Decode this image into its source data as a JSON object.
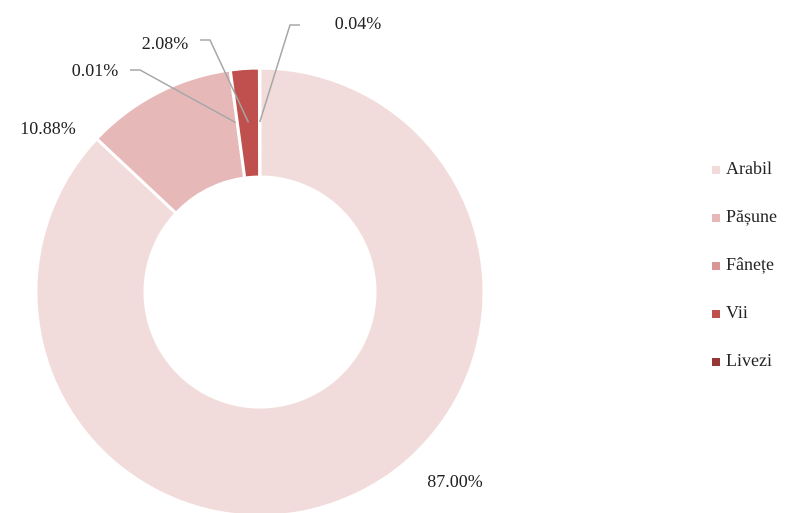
{
  "chart_data": {
    "type": "donut",
    "categories": [
      "Arabil",
      "Pășune",
      "Fânețe",
      "Vii",
      "Livezi"
    ],
    "values": [
      87.0,
      10.88,
      0.01,
      2.08,
      0.04
    ],
    "value_labels": [
      "87.00%",
      "10.88%",
      "0.01%",
      "2.08%",
      "0.04%"
    ],
    "colors": [
      "#f2dcdb",
      "#e6b9b8",
      "#d99694",
      "#c0504d",
      "#953735"
    ],
    "legend": "right"
  }
}
